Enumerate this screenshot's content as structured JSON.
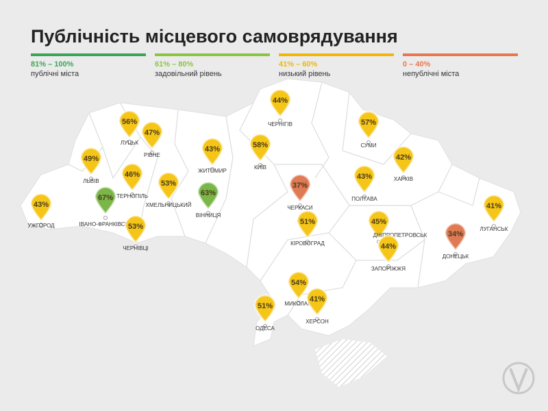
{
  "title": "Публічність місцевого самоврядування",
  "legend": [
    {
      "range": "81% – 100%",
      "label": "публічні міста",
      "color": "#3aa655"
    },
    {
      "range": "61% – 80%",
      "label": "задовільний рівень",
      "color": "#8cc63f"
    },
    {
      "range": "41% – 60%",
      "label": "низький рівень",
      "color": "#f2b705"
    },
    {
      "range": "0 – 40%",
      "label": "непублічні міста",
      "color": "#e8774f"
    }
  ],
  "cities": [
    {
      "name": "ЛУЦЬК",
      "value": "56%",
      "color": "#f5c518"
    },
    {
      "name": "РІВНЕ",
      "value": "47%",
      "color": "#f5c518"
    },
    {
      "name": "ЛЬВІВ",
      "value": "49%",
      "color": "#f5c518"
    },
    {
      "name": "ТЕРНОПІЛЬ",
      "value": "46%",
      "color": "#f5c518"
    },
    {
      "name": "ХМЕЛЬНИЦЬКИЙ",
      "value": "53%",
      "color": "#f5c518"
    },
    {
      "name": "ЖИТОМИР",
      "value": "43%",
      "color": "#f5c518"
    },
    {
      "name": "КИЇВ",
      "value": "58%",
      "color": "#f5c518"
    },
    {
      "name": "ЧЕРНІГІВ",
      "value": "44%",
      "color": "#f5c518"
    },
    {
      "name": "СУМИ",
      "value": "57%",
      "color": "#f5c518"
    },
    {
      "name": "ХАРКІВ",
      "value": "42%",
      "color": "#f5c518"
    },
    {
      "name": "ПОЛТАВА",
      "value": "43%",
      "color": "#f5c518"
    },
    {
      "name": "ЧЕРКАСИ",
      "value": "37%",
      "color": "#e07a55"
    },
    {
      "name": "ВІННИЦЯ",
      "value": "63%",
      "color": "#7ab648"
    },
    {
      "name": "УЖГОРОД",
      "value": "43%",
      "color": "#f5c518"
    },
    {
      "name": "ІВАНО-ФРАНКІВСЬК",
      "value": "67%",
      "color": "#7ab648"
    },
    {
      "name": "ЧЕРНІВЦІ",
      "value": "53%",
      "color": "#f5c518"
    },
    {
      "name": "КІРОВОГРАД",
      "value": "51%",
      "color": "#f5c518"
    },
    {
      "name": "ДНІПРОПЕТРОВСЬК",
      "value": "45%",
      "color": "#f5c518"
    },
    {
      "name": "ЗАПОРІЖЖЯ",
      "value": "44%",
      "color": "#f5c518"
    },
    {
      "name": "ДОНЕЦЬК",
      "value": "34%",
      "color": "#e07a55"
    },
    {
      "name": "ЛУГАНСЬК",
      "value": "41%",
      "color": "#f5c518"
    },
    {
      "name": "МИКОЛАЇВ",
      "value": "54%",
      "color": "#f5c518"
    },
    {
      "name": "ХЕРСОН",
      "value": "41%",
      "color": "#f5c518"
    },
    {
      "name": "ОДЕСА",
      "value": "51%",
      "color": "#f5c518"
    }
  ]
}
